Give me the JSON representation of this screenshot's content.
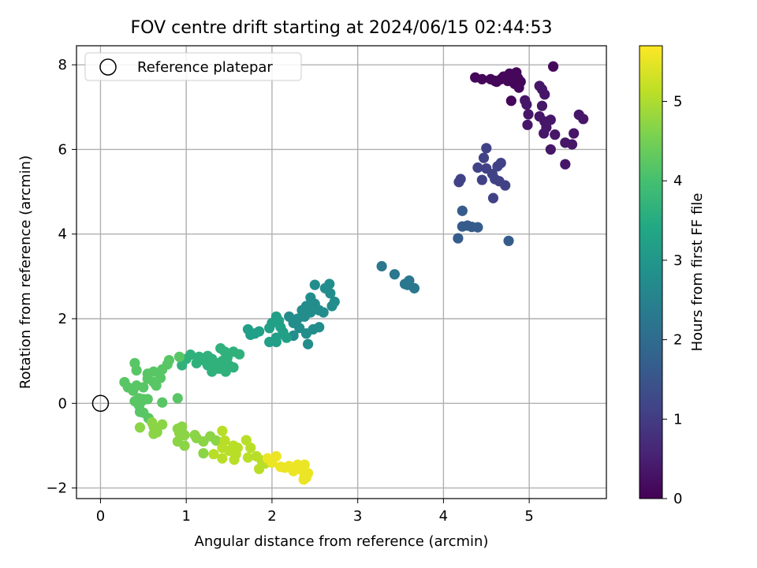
{
  "chart_data": {
    "type": "scatter",
    "title": "FOV centre drift starting at 2024/06/15 02:44:53",
    "xlabel": "Angular distance from reference (arcmin)",
    "ylabel": "Rotation from reference (arcmin)",
    "xlim": [
      -0.28,
      5.9
    ],
    "ylim": [
      -2.25,
      8.45
    ],
    "xticks": [
      0,
      1,
      2,
      3,
      4,
      5
    ],
    "yticks": [
      -2,
      0,
      2,
      4,
      6,
      8
    ],
    "grid": true,
    "legend": {
      "placement": "top-left",
      "entries": [
        "Reference platepar"
      ]
    },
    "reference_point": {
      "x": 0,
      "y": 0,
      "marker": "hollow-circle"
    },
    "colorbar": {
      "label": "Hours from first FF file",
      "colormap": "viridis",
      "range": [
        0,
        5.7
      ],
      "ticks": [
        0,
        1,
        2,
        3,
        4,
        5
      ]
    },
    "series": [
      {
        "color_value_hours": 0.1,
        "points": [
          [
            4.37,
            7.7
          ],
          [
            4.45,
            7.66
          ],
          [
            4.55,
            7.66
          ],
          [
            4.6,
            7.62
          ],
          [
            4.67,
            7.66
          ],
          [
            4.7,
            7.72
          ],
          [
            4.75,
            7.62
          ],
          [
            4.77,
            7.79
          ],
          [
            4.8,
            7.74
          ],
          [
            4.83,
            7.55
          ],
          [
            4.85,
            7.82
          ],
          [
            4.9,
            7.6
          ],
          [
            4.87,
            7.68
          ],
          [
            4.88,
            7.46
          ],
          [
            4.79,
            7.15
          ],
          [
            5.28,
            7.96
          ],
          [
            4.62,
            7.6
          ],
          [
            4.72,
            7.7
          ],
          [
            4.82,
            7.7
          ],
          [
            4.88,
            7.56
          ]
        ]
      },
      {
        "color_value_hours": 0.35,
        "points": [
          [
            4.95,
            7.16
          ],
          [
            4.97,
            7.06
          ],
          [
            4.99,
            6.83
          ],
          [
            4.98,
            6.58
          ],
          [
            5.12,
            7.5
          ],
          [
            5.15,
            7.42
          ],
          [
            5.18,
            7.3
          ],
          [
            5.15,
            7.03
          ],
          [
            5.12,
            6.78
          ],
          [
            5.18,
            6.66
          ],
          [
            5.2,
            6.52
          ],
          [
            5.17,
            6.38
          ],
          [
            5.25,
            6.7
          ],
          [
            5.3,
            6.35
          ],
          [
            5.25,
            6.0
          ],
          [
            5.42,
            6.16
          ],
          [
            5.5,
            6.12
          ],
          [
            5.52,
            6.38
          ],
          [
            5.58,
            6.82
          ],
          [
            5.63,
            6.72
          ],
          [
            5.42,
            5.65
          ]
        ]
      },
      {
        "color_value_hours": 1.1,
        "points": [
          [
            4.5,
            6.03
          ],
          [
            4.47,
            5.8
          ],
          [
            4.4,
            5.57
          ],
          [
            4.5,
            5.55
          ],
          [
            4.57,
            5.42
          ],
          [
            4.63,
            5.6
          ],
          [
            4.67,
            5.68
          ],
          [
            4.45,
            5.28
          ],
          [
            4.6,
            5.3
          ],
          [
            4.65,
            5.25
          ],
          [
            4.72,
            5.15
          ],
          [
            4.2,
            5.3
          ],
          [
            4.18,
            5.23
          ],
          [
            4.58,
            4.85
          ]
        ]
      },
      {
        "color_value_hours": 1.65,
        "points": [
          [
            4.22,
            4.55
          ],
          [
            4.22,
            4.18
          ],
          [
            4.28,
            4.2
          ],
          [
            4.33,
            4.17
          ],
          [
            4.4,
            4.16
          ],
          [
            4.17,
            3.9
          ],
          [
            4.76,
            3.84
          ]
        ]
      },
      {
        "color_value_hours": 2.25,
        "points": [
          [
            3.28,
            3.24
          ],
          [
            3.43,
            3.05
          ],
          [
            3.55,
            2.82
          ],
          [
            3.6,
            2.9
          ],
          [
            3.58,
            2.8
          ],
          [
            3.66,
            2.72
          ]
        ]
      },
      {
        "color_value_hours": 2.75,
        "points": [
          [
            2.5,
            2.8
          ],
          [
            2.62,
            2.72
          ],
          [
            2.67,
            2.82
          ],
          [
            2.68,
            2.6
          ],
          [
            2.73,
            2.4
          ],
          [
            2.7,
            2.3
          ],
          [
            2.45,
            2.5
          ],
          [
            2.5,
            2.35
          ],
          [
            2.4,
            2.3
          ],
          [
            2.35,
            2.2
          ],
          [
            2.55,
            2.2
          ],
          [
            2.6,
            2.15
          ],
          [
            2.45,
            2.15
          ],
          [
            2.38,
            2.05
          ],
          [
            2.3,
            2.0
          ],
          [
            2.25,
            1.9
          ],
          [
            2.32,
            1.78
          ],
          [
            2.48,
            1.75
          ],
          [
            2.55,
            1.8
          ],
          [
            2.4,
            1.65
          ],
          [
            2.42,
            1.4
          ],
          [
            2.2,
            2.05
          ],
          [
            2.25,
            1.6
          ]
        ]
      },
      {
        "color_value_hours": 3.2,
        "points": [
          [
            2.05,
            2.05
          ],
          [
            2.08,
            1.95
          ],
          [
            2.0,
            1.9
          ],
          [
            1.97,
            1.78
          ],
          [
            2.1,
            1.8
          ],
          [
            2.13,
            1.68
          ],
          [
            2.17,
            1.55
          ],
          [
            2.05,
            1.55
          ],
          [
            1.97,
            1.45
          ],
          [
            2.05,
            1.45
          ],
          [
            1.72,
            1.75
          ],
          [
            1.75,
            1.62
          ],
          [
            1.8,
            1.65
          ],
          [
            1.85,
            1.7
          ]
        ]
      },
      {
        "color_value_hours": 3.65,
        "points": [
          [
            1.4,
            1.3
          ],
          [
            1.45,
            1.22
          ],
          [
            1.55,
            1.22
          ],
          [
            1.62,
            1.16
          ],
          [
            1.48,
            1.08
          ],
          [
            1.42,
            1.0
          ],
          [
            1.35,
            0.95
          ],
          [
            1.3,
            1.05
          ],
          [
            1.25,
            1.12
          ],
          [
            1.22,
            1.0
          ],
          [
            1.25,
            0.9
          ],
          [
            1.3,
            0.85
          ],
          [
            1.38,
            0.82
          ],
          [
            1.45,
            0.85
          ],
          [
            1.5,
            0.9
          ],
          [
            1.55,
            0.85
          ],
          [
            1.46,
            0.75
          ],
          [
            1.3,
            0.75
          ],
          [
            1.15,
            1.1
          ],
          [
            1.05,
            1.15
          ],
          [
            1.0,
            1.05
          ],
          [
            0.95,
            0.9
          ],
          [
            1.12,
            0.95
          ]
        ]
      },
      {
        "color_value_hours": 4.2,
        "points": [
          [
            0.92,
            1.1
          ],
          [
            0.8,
            1.02
          ],
          [
            0.78,
            0.92
          ],
          [
            0.72,
            0.8
          ],
          [
            0.7,
            0.6
          ],
          [
            0.62,
            0.75
          ],
          [
            0.55,
            0.7
          ],
          [
            0.55,
            0.58
          ],
          [
            0.62,
            0.5
          ],
          [
            0.65,
            0.42
          ],
          [
            0.5,
            0.38
          ],
          [
            0.42,
            0.42
          ],
          [
            0.4,
            0.95
          ],
          [
            0.42,
            0.78
          ],
          [
            0.28,
            0.5
          ],
          [
            0.32,
            0.38
          ],
          [
            0.38,
            0.3
          ],
          [
            0.45,
            0.12
          ],
          [
            0.48,
            0.05
          ],
          [
            0.5,
            0.1
          ],
          [
            0.55,
            0.1
          ],
          [
            0.4,
            0.05
          ],
          [
            0.46,
            -0.2
          ],
          [
            0.45,
            -0.05
          ],
          [
            0.5,
            -0.22
          ],
          [
            0.56,
            -0.35
          ],
          [
            0.9,
            0.12
          ],
          [
            0.72,
            0.02
          ]
        ]
      },
      {
        "color_value_hours": 4.7,
        "points": [
          [
            0.46,
            -0.57
          ],
          [
            0.6,
            -0.45
          ],
          [
            0.62,
            -0.55
          ],
          [
            0.66,
            -0.68
          ],
          [
            0.62,
            -0.72
          ],
          [
            0.72,
            -0.5
          ],
          [
            0.9,
            -0.6
          ],
          [
            0.95,
            -0.55
          ],
          [
            0.92,
            -0.7
          ],
          [
            0.98,
            -0.75
          ],
          [
            0.9,
            -0.9
          ],
          [
            0.98,
            -1.0
          ],
          [
            1.1,
            -0.75
          ],
          [
            1.12,
            -0.82
          ],
          [
            1.2,
            -0.9
          ],
          [
            1.2,
            -1.18
          ],
          [
            1.28,
            -0.78
          ],
          [
            1.35,
            -0.88
          ]
        ]
      },
      {
        "color_value_hours": 5.1,
        "points": [
          [
            1.42,
            -0.65
          ],
          [
            1.45,
            -0.88
          ],
          [
            1.42,
            -1.05
          ],
          [
            1.5,
            -1.12
          ],
          [
            1.55,
            -1.0
          ],
          [
            1.58,
            -1.2
          ],
          [
            1.6,
            -1.05
          ],
          [
            1.32,
            -1.2
          ],
          [
            1.42,
            -1.3
          ],
          [
            1.56,
            -1.33
          ],
          [
            1.7,
            -0.87
          ],
          [
            1.75,
            -1.05
          ],
          [
            1.72,
            -1.28
          ],
          [
            1.82,
            -1.25
          ],
          [
            1.88,
            -1.35
          ],
          [
            1.92,
            -1.42
          ],
          [
            1.85,
            -1.55
          ]
        ]
      },
      {
        "color_value_hours": 5.55,
        "points": [
          [
            1.95,
            -1.3
          ],
          [
            2.05,
            -1.25
          ],
          [
            2.0,
            -1.4
          ],
          [
            2.1,
            -1.5
          ],
          [
            2.15,
            -1.52
          ],
          [
            2.2,
            -1.48
          ],
          [
            2.25,
            -1.6
          ],
          [
            2.3,
            -1.45
          ],
          [
            2.32,
            -1.55
          ],
          [
            2.38,
            -1.45
          ],
          [
            2.38,
            -1.7
          ],
          [
            2.4,
            -1.75
          ],
          [
            2.42,
            -1.65
          ],
          [
            2.37,
            -1.8
          ]
        ]
      }
    ]
  }
}
